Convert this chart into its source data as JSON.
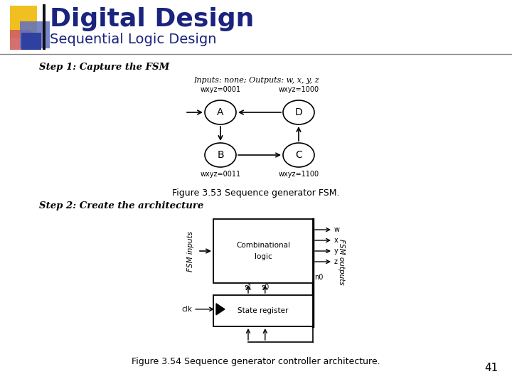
{
  "title": "Digital Design",
  "subtitle": "Sequential Logic Design",
  "step1_text": "Step 1: Capture the FSM",
  "step2_text": "Step 2: Create the architecture",
  "fsm_inputs_label": "Inputs: none; Outputs: w, x, y, z",
  "fig353_caption": "Figure 3.53 Sequence generator FSM.",
  "fig354_caption": "Figure 3.54 Sequence generator controller architecture.",
  "page_number": "41",
  "bg_color": "#ffffff",
  "header_title_color": "#1a237e",
  "header_sub_color": "#1a237e",
  "logo_yellow": "#f0c020",
  "logo_red": "#d06060",
  "logo_blue": "#3040a0",
  "logo_bluegray": "#6070c0"
}
